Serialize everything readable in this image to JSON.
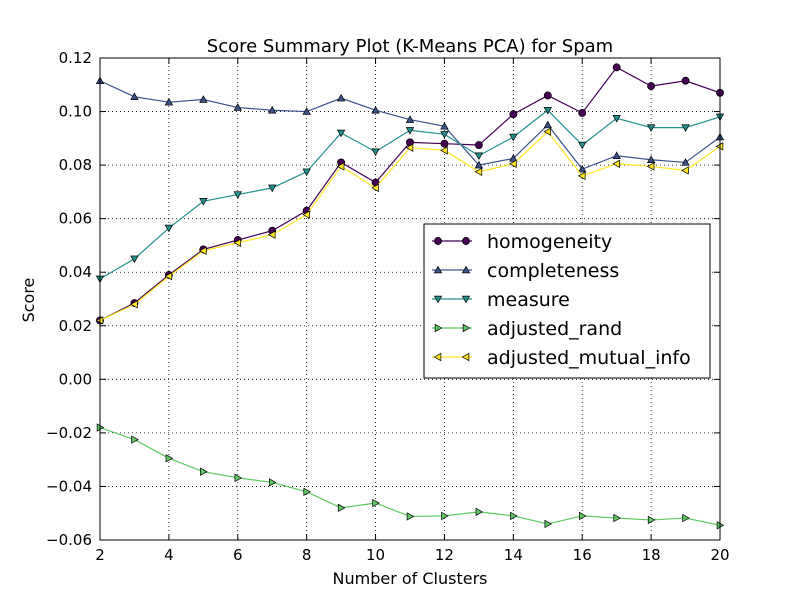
{
  "chart_data": {
    "type": "line",
    "title": "Score Summary Plot (K-Means PCA) for Spam",
    "xlabel": "Number of Clusters",
    "ylabel": "Score",
    "xlim": [
      2,
      20
    ],
    "ylim": [
      -0.06,
      0.12
    ],
    "xticks": [
      2,
      4,
      6,
      8,
      10,
      12,
      14,
      16,
      18,
      20
    ],
    "xtick_labels": [
      "2",
      "4",
      "6",
      "8",
      "10",
      "12",
      "14",
      "16",
      "18",
      "20"
    ],
    "yticks": [
      -0.06,
      -0.04,
      -0.02,
      0.0,
      0.02,
      0.04,
      0.06,
      0.08,
      0.1,
      0.12
    ],
    "ytick_labels": [
      "−0.06",
      "−0.04",
      "−0.02",
      "0.00",
      "0.02",
      "0.04",
      "0.06",
      "0.08",
      "0.10",
      "0.12"
    ],
    "grid": true,
    "legend_position": "center-right",
    "x": [
      2,
      3,
      4,
      5,
      6,
      7,
      8,
      9,
      10,
      11,
      12,
      13,
      14,
      15,
      16,
      17,
      18,
      19,
      20
    ],
    "series": [
      {
        "name": "homogeneity",
        "color": "#440154",
        "marker": "circle",
        "values": [
          0.022,
          0.0285,
          0.039,
          0.0485,
          0.052,
          0.0555,
          0.063,
          0.081,
          0.0735,
          0.0885,
          0.088,
          0.0875,
          0.099,
          0.106,
          0.0995,
          0.1165,
          0.1095,
          0.1115,
          0.107
        ]
      },
      {
        "name": "completeness",
        "color": "#3b528b",
        "marker": "triangle-up",
        "values": [
          0.1115,
          0.1055,
          0.1035,
          0.1045,
          0.1015,
          0.1005,
          0.1,
          0.105,
          0.1005,
          0.097,
          0.0945,
          0.08,
          0.0825,
          0.095,
          0.0785,
          0.0835,
          0.082,
          0.081,
          0.0905
        ]
      },
      {
        "name": "measure",
        "color": "#21918c",
        "marker": "triangle-down",
        "values": [
          0.0375,
          0.045,
          0.0565,
          0.0665,
          0.069,
          0.0715,
          0.0775,
          0.092,
          0.085,
          0.093,
          0.0915,
          0.0835,
          0.0905,
          0.1005,
          0.0875,
          0.0975,
          0.094,
          0.094,
          0.098
        ]
      },
      {
        "name": "adjusted_rand",
        "color": "#5ec962",
        "marker": "triangle-right",
        "values": [
          -0.018,
          -0.0225,
          -0.0295,
          -0.0345,
          -0.0368,
          -0.0385,
          -0.042,
          -0.048,
          -0.0462,
          -0.0512,
          -0.051,
          -0.0495,
          -0.051,
          -0.054,
          -0.051,
          -0.0518,
          -0.0525,
          -0.0518,
          -0.0545
        ]
      },
      {
        "name": "adjusted_mutual_info",
        "color": "#fde725",
        "marker": "triangle-left",
        "values": [
          0.022,
          0.028,
          0.0385,
          0.048,
          0.051,
          0.054,
          0.0615,
          0.0795,
          0.0715,
          0.0865,
          0.0855,
          0.0775,
          0.0805,
          0.0925,
          0.076,
          0.0805,
          0.0795,
          0.078,
          0.087
        ]
      }
    ]
  }
}
